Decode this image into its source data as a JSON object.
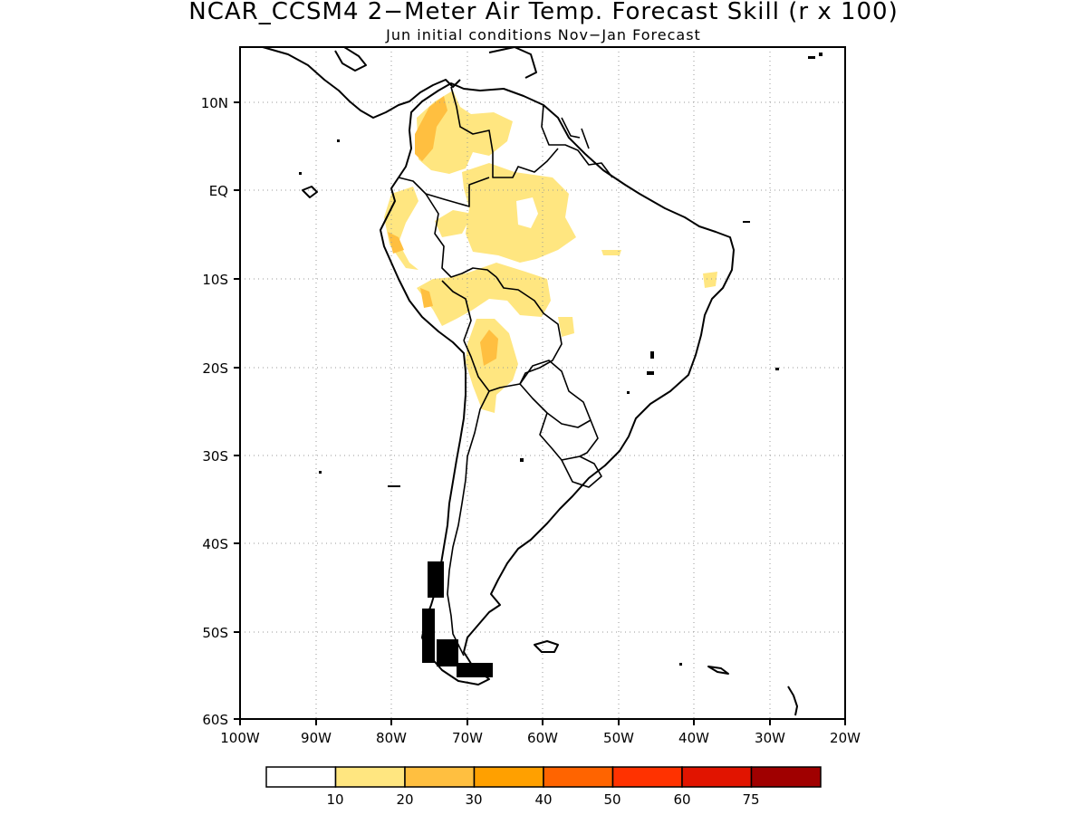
{
  "title": "NCAR_CCSM4 2−Meter Air Temp. Forecast Skill (r x 100)",
  "subtitle": "Jun initial conditions  Nov−Jan Forecast",
  "map": {
    "lon_range": [
      -100,
      -20
    ],
    "lat_range": [
      -60,
      15
    ],
    "lon_ticks": [
      {
        "value": -100,
        "label": "100W"
      },
      {
        "value": -90,
        "label": "90W"
      },
      {
        "value": -80,
        "label": "80W"
      },
      {
        "value": -70,
        "label": "70W"
      },
      {
        "value": -60,
        "label": "60W"
      },
      {
        "value": -50,
        "label": "50W"
      },
      {
        "value": -40,
        "label": "40W"
      },
      {
        "value": -30,
        "label": "30W"
      },
      {
        "value": -20,
        "label": "20W"
      }
    ],
    "lat_ticks": [
      {
        "value": 10,
        "label": "10N"
      },
      {
        "value": 0,
        "label": "EQ"
      },
      {
        "value": -10,
        "label": "10S"
      },
      {
        "value": -20,
        "label": "20S"
      },
      {
        "value": -30,
        "label": "30S"
      },
      {
        "value": -40,
        "label": "40S"
      },
      {
        "value": -50,
        "label": "50S"
      },
      {
        "value": -60,
        "label": "60S"
      }
    ],
    "grid": "dotted"
  },
  "colorbar": {
    "colors": [
      "#ffffff",
      "#ffe680",
      "#ffbf40",
      "#ffa000",
      "#ff6400",
      "#ff3200",
      "#e11400",
      "#a00000"
    ],
    "labels": [
      "10",
      "20",
      "30",
      "40",
      "50",
      "60",
      "75"
    ]
  },
  "skill_regions": [
    {
      "level": "10-20",
      "color": "#ffe680"
    },
    {
      "level": "20-30",
      "color": "#ffbf40"
    }
  ]
}
